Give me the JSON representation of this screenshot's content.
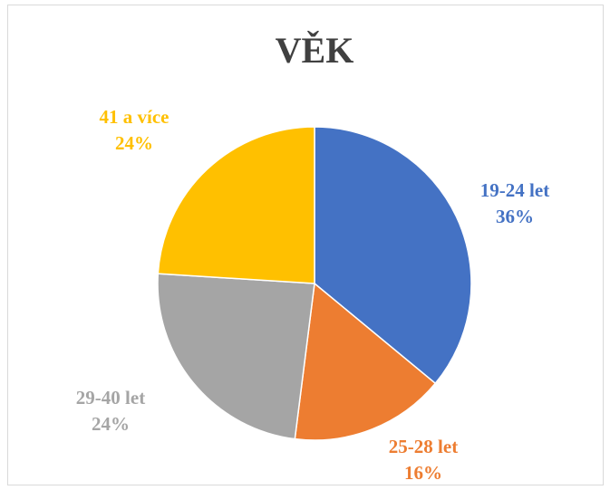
{
  "chart_data": {
    "type": "pie",
    "title": "VĚK",
    "categories": [
      "19-24 let",
      "25-28 let",
      "29-40 let",
      "41 a více"
    ],
    "values": [
      36,
      16,
      24,
      24
    ],
    "value_labels": [
      "36%",
      "16%",
      "24%",
      "24%"
    ],
    "colors": [
      "#4472c4",
      "#ed7d31",
      "#a5a5a5",
      "#ffc000"
    ]
  }
}
